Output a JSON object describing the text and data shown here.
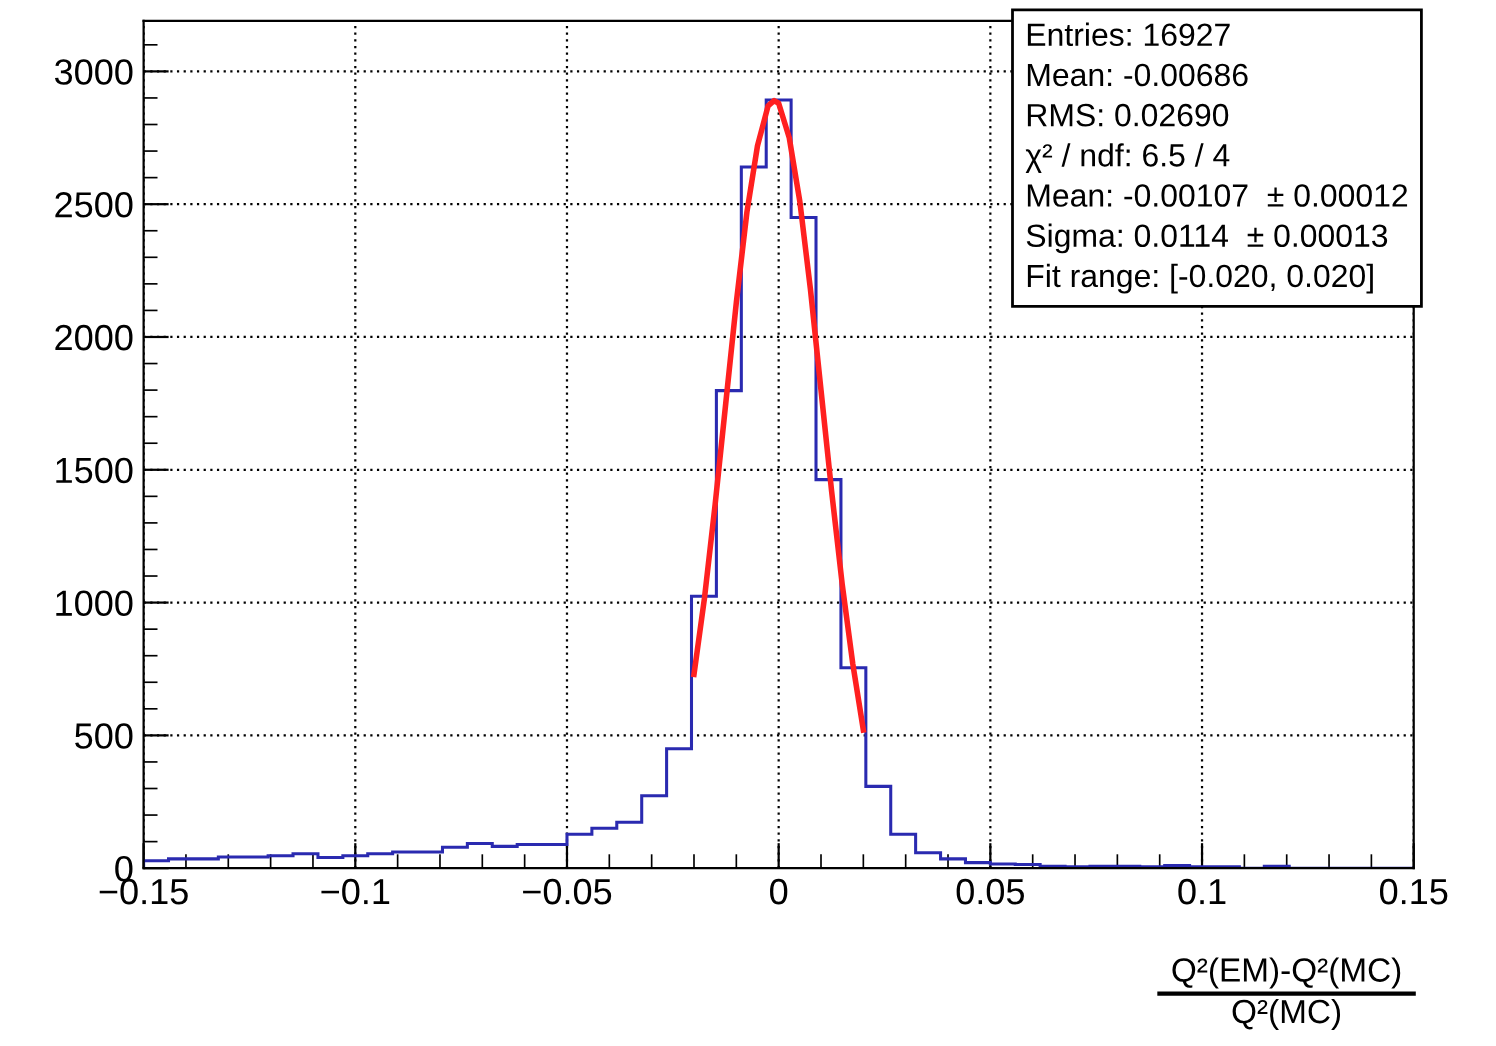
{
  "chart_data": {
    "type": "histogram",
    "xlabel": "Q²(EM)-Q²(MC)\nQ²(MC)",
    "bins": [
      -0.15,
      -0.14412,
      -0.13824,
      -0.13235,
      -0.12647,
      -0.12059,
      -0.11471,
      -0.10882,
      -0.10294,
      -0.09706,
      -0.09118,
      -0.08529,
      -0.07941,
      -0.07353,
      -0.06765,
      -0.06176,
      -0.05588,
      -0.05,
      -0.04412,
      -0.03824,
      -0.03235,
      -0.02647,
      -0.02059,
      -0.01471,
      -0.00882,
      -0.00294,
      0.00294,
      0.00882,
      0.01471,
      0.02059,
      0.02647,
      0.03235,
      0.03824,
      0.04412,
      0.05,
      0.05588,
      0.06176,
      0.06765,
      0.07353,
      0.07941,
      0.08529,
      0.09118,
      0.09706,
      0.10294,
      0.10882,
      0.11471,
      0.12059,
      0.12647,
      0.13235,
      0.13824,
      0.14412,
      0.15
    ],
    "series": [
      {
        "color": "#2a2ab0",
        "values": [
          28,
          35,
          35,
          42,
          42,
          47,
          54,
          40,
          47,
          54,
          61,
          61,
          79,
          93,
          82,
          89,
          89,
          128,
          150,
          173,
          273,
          450,
          1024,
          1798,
          2640,
          2892,
          2450,
          1463,
          755,
          308,
          128,
          58,
          35,
          21,
          16,
          14,
          7,
          5,
          7,
          7,
          5,
          10,
          5,
          5,
          0,
          7,
          0,
          0,
          0,
          0,
          0
        ]
      },
      {
        "type": "line",
        "color": "#ff2020",
        "x": [
          -0.02,
          -0.0175,
          -0.015,
          -0.0125,
          -0.01,
          -0.0075,
          -0.005,
          -0.0025,
          -0.00107,
          0,
          0.0025,
          0.005,
          0.0075,
          0.01,
          0.0125,
          0.015,
          0.0175,
          0.02
        ],
        "values": [
          730,
          1020,
          1370,
          1750,
          2130,
          2470,
          2720,
          2870,
          2890,
          2880,
          2750,
          2510,
          2180,
          1800,
          1420,
          1070,
          770,
          520
        ]
      }
    ],
    "xlim": [
      -0.15,
      0.15
    ],
    "xticks": [
      {
        "value": -0.15,
        "label": "−0.15"
      },
      {
        "value": -0.1,
        "label": "−0.1"
      },
      {
        "value": -0.05,
        "label": "−0.05"
      },
      0,
      0.05,
      0.1,
      0.15
    ],
    "ylim": [
      0,
      3190
    ],
    "yticks": [
      0,
      500,
      1000,
      1500,
      2000,
      2500,
      3000
    ],
    "grid": true,
    "legend": false,
    "annotations": [
      "Entries: 16927",
      "Mean: -0.00686",
      "RMS: 0.02690",
      "χ² / ndf: 6.5 / 4",
      "Mean: -0.00107  ± 0.00012",
      "Sigma: 0.0114  ± 0.00013",
      "Fit range: [-0.020, 0.020]"
    ]
  }
}
